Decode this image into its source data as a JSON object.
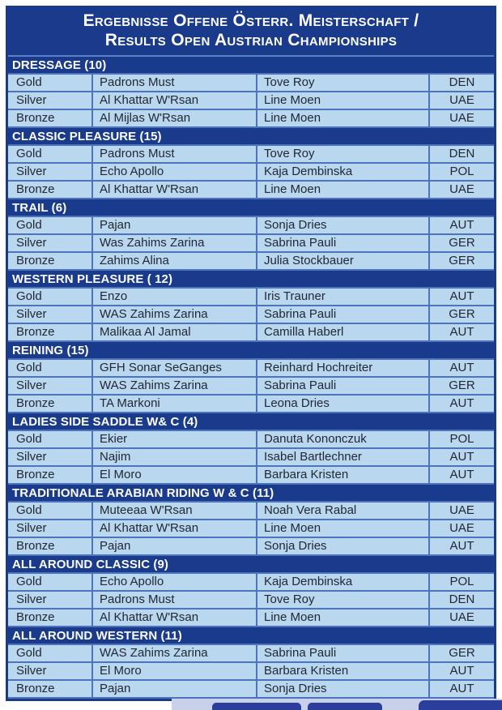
{
  "title": {
    "line1": "Ergebnisse Offene Österr. Meisterschaft /",
    "line2": "Results Open Austrian Championships"
  },
  "columns": [
    "medal",
    "horse",
    "rider",
    "country"
  ],
  "sections": [
    {
      "header": "DRESSAGE (10)",
      "rows": [
        {
          "medal": "Gold",
          "horse": "Padrons Must",
          "rider": "Tove Roy",
          "country": "DEN"
        },
        {
          "medal": "Silver",
          "horse": "Al Khattar W'Rsan",
          "rider": "Line Moen",
          "country": "UAE"
        },
        {
          "medal": "Bronze",
          "horse": "Al Mijlas W'Rsan",
          "rider": "Line Moen",
          "country": "UAE"
        }
      ]
    },
    {
      "header": "CLASSIC PLEASURE (15)",
      "rows": [
        {
          "medal": "Gold",
          "horse": "Padrons Must",
          "rider": "Tove Roy",
          "country": "DEN"
        },
        {
          "medal": "Silver",
          "horse": "Echo Apollo",
          "rider": "Kaja Dembinska",
          "country": "POL"
        },
        {
          "medal": "Bronze",
          "horse": "Al Khattar W'Rsan",
          "rider": "Line Moen",
          "country": "UAE"
        }
      ]
    },
    {
      "header": "TRAIL (6)",
      "rows": [
        {
          "medal": "Gold",
          "horse": "Pajan",
          "rider": "Sonja Dries",
          "country": "AUT"
        },
        {
          "medal": "Silver",
          "horse": "Was Zahims Zarina",
          "rider": "Sabrina Pauli",
          "country": "GER"
        },
        {
          "medal": "Bronze",
          "horse": "Zahims Alina",
          "rider": "Julia Stockbauer",
          "country": "GER"
        }
      ]
    },
    {
      "header": "WESTERN PLEASURE ( 12)",
      "rows": [
        {
          "medal": "Gold",
          "horse": "Enzo",
          "rider": "Iris Trauner",
          "country": "AUT"
        },
        {
          "medal": "Silver",
          "horse": "WAS Zahims Zarina",
          "rider": "Sabrina Pauli",
          "country": "GER"
        },
        {
          "medal": "Bronze",
          "horse": "Malikaa Al Jamal",
          "rider": "Camilla Haberl",
          "country": "AUT"
        }
      ]
    },
    {
      "header": "REINING (15)",
      "rows": [
        {
          "medal": "Gold",
          "horse": "GFH Sonar SeGanges",
          "rider": "Reinhard Hochreiter",
          "country": "AUT"
        },
        {
          "medal": "Silver",
          "horse": "WAS Zahims Zarina",
          "rider": "Sabrina Pauli",
          "country": "GER"
        },
        {
          "medal": "Bronze",
          "horse": "TA Markoni",
          "rider": "Leona Dries",
          "country": "AUT"
        }
      ]
    },
    {
      "header": "LADIES SIDE SADDLE W& C (4)",
      "rows": [
        {
          "medal": "Gold",
          "horse": "Ekier",
          "rider": "Danuta Kononczuk",
          "country": "POL"
        },
        {
          "medal": "Silver",
          "horse": "Najim",
          "rider": "Isabel Bartlechner",
          "country": "AUT"
        },
        {
          "medal": "Bronze",
          "horse": "El Moro",
          "rider": "Barbara Kristen",
          "country": "AUT"
        }
      ]
    },
    {
      "header": "TRADITIONALE ARABIAN RIDING  W & C (11)",
      "rows": [
        {
          "medal": "Gold",
          "horse": "Muteeaa W'Rsan",
          "rider": "Noah Vera Rabal",
          "country": "UAE"
        },
        {
          "medal": "Silver",
          "horse": "Al Khattar W'Rsan",
          "rider": "Line Moen",
          "country": "UAE"
        },
        {
          "medal": "Bronze",
          "horse": "Pajan",
          "rider": "Sonja Dries",
          "country": "AUT"
        }
      ]
    },
    {
      "header": "ALL AROUND CLASSIC (9)",
      "rows": [
        {
          "medal": "Gold",
          "horse": "Echo Apollo",
          "rider": "Kaja Dembinska",
          "country": "POL"
        },
        {
          "medal": "Silver",
          "horse": "Padrons Must",
          "rider": "Tove Roy",
          "country": "DEN"
        },
        {
          "medal": "Bronze",
          "horse": "Al Khattar W'Rsan",
          "rider": "Line Moen",
          "country": "UAE"
        }
      ]
    },
    {
      "header": "ALL AROUND WESTERN (11)",
      "rows": [
        {
          "medal": "Gold",
          "horse": "WAS Zahims Zarina",
          "rider": "Sabrina Pauli",
          "country": "GER"
        },
        {
          "medal": "Silver",
          "horse": "El Moro",
          "rider": "Barbara Kristen",
          "country": "AUT"
        },
        {
          "medal": "Bronze",
          "horse": "Pajan",
          "rider": "Sonja Dries",
          "country": "AUT"
        }
      ]
    }
  ],
  "colors": {
    "navy": "#1a3a8c",
    "cell_blue": "#b9d8f0",
    "grid_blue": "#4d74ba",
    "text": "#222733"
  }
}
